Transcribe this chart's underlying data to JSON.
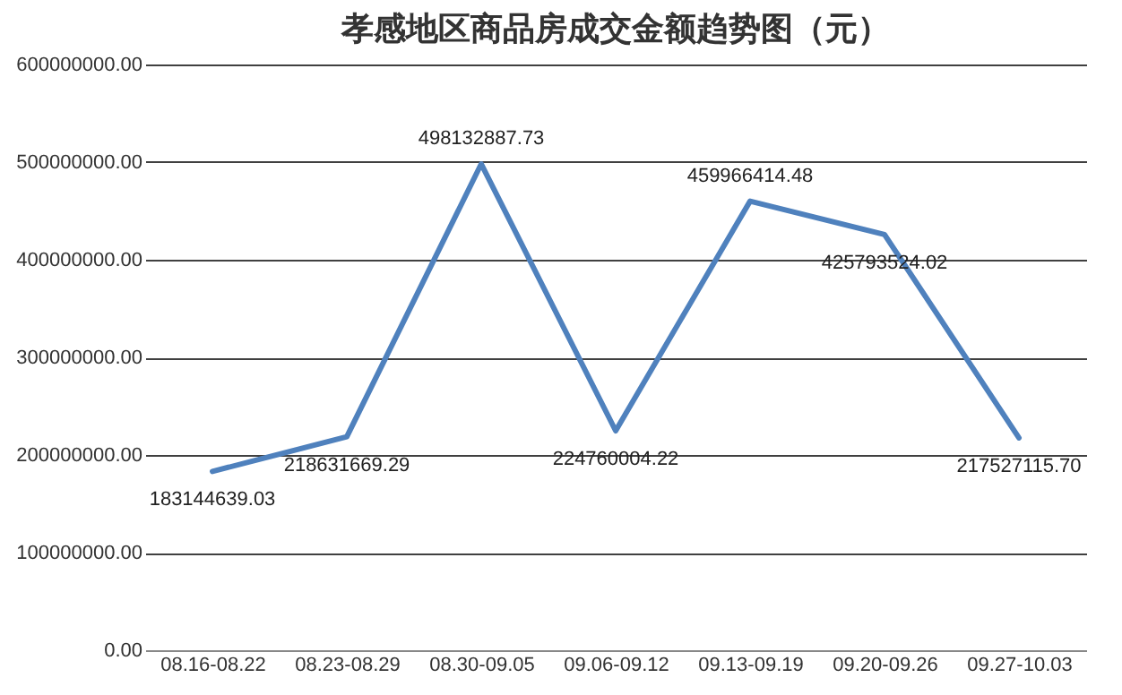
{
  "chart_data": {
    "type": "line",
    "title": "孝感地区商品房成交金额趋势图（元）",
    "categories": [
      "08.16-08.22",
      "08.23-08.29",
      "08.30-09.05",
      "09.06-09.12",
      "09.13-09.19",
      "09.20-09.26",
      "09.27-10.03"
    ],
    "series": [
      {
        "color": "#4f81bd",
        "values": [
          183144639.03,
          218631669.29,
          498132887.73,
          224760004.22,
          459966414.48,
          425793524.02,
          217527115.7
        ]
      }
    ],
    "ylim": [
      0,
      600000000
    ],
    "yticks": [
      {
        "value": 0,
        "label": "0.00"
      },
      {
        "value": 100000000,
        "label": "100000000.00"
      },
      {
        "value": 200000000,
        "label": "200000000.00"
      },
      {
        "value": 300000000,
        "label": "300000000.00"
      },
      {
        "value": 400000000,
        "label": "400000000.00"
      },
      {
        "value": 500000000,
        "label": "500000000.00"
      },
      {
        "value": 600000000,
        "label": "600000000.00"
      }
    ],
    "value_labels": [
      "183144639.03",
      "218631669.29",
      "498132887.73",
      "224760004.22",
      "459966414.48",
      "425793524.02",
      "217527115.70"
    ],
    "grid": "y",
    "legend": false,
    "marker": "none",
    "line_style": "solid"
  }
}
